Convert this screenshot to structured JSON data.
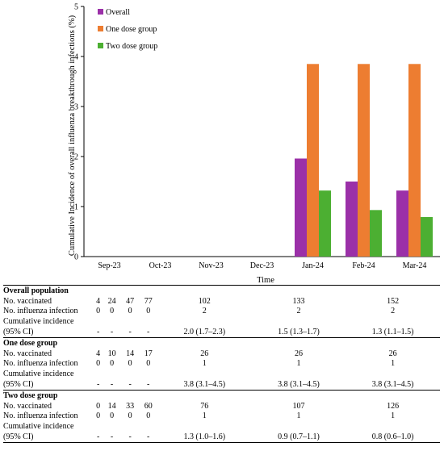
{
  "chart_data": {
    "type": "bar",
    "categories": [
      "Sep-23",
      "Oct-23",
      "Nov-23",
      "Dec-23",
      "Jan-24",
      "Feb-24",
      "Mar-24"
    ],
    "series": [
      {
        "name": "Overall",
        "color": "#9b30a8",
        "values": [
          0,
          0,
          0,
          0,
          1.96,
          1.5,
          1.32
        ]
      },
      {
        "name": "One dose group",
        "color": "#ed7d31",
        "values": [
          0,
          0,
          0,
          0,
          3.85,
          3.85,
          3.85
        ]
      },
      {
        "name": "Two dose group",
        "color": "#4caf32",
        "values": [
          0,
          0,
          0,
          0,
          1.32,
          0.93,
          0.79
        ]
      }
    ],
    "xlabel": "Time",
    "ylabel": "Cumulative Incidence of overall influenza breakthrough infections (%)",
    "ylim": [
      0,
      5
    ],
    "yticks": [
      "0",
      "1",
      "2",
      "3",
      "4",
      "5"
    ],
    "legend_position": "top-left",
    "grid": false
  },
  "table": {
    "sections": [
      {
        "title": "Overall population",
        "rows": [
          {
            "label": "No. vaccinated",
            "values": [
              "4",
              "24",
              "47",
              "77",
              "102",
              "133",
              "152"
            ]
          },
          {
            "label": "No. influenza infection",
            "values": [
              "0",
              "0",
              "0",
              "0",
              "2",
              "2",
              "2"
            ]
          }
        ],
        "ci_label_1": "Cumulative incidence",
        "ci_label_2": "(95% CI)",
        "ci_values": [
          "-",
          "-",
          "-",
          "-",
          "2.0 (1.7–2.3)",
          "1.5 (1.3–1.7)",
          "1.3 (1.1–1.5)"
        ]
      },
      {
        "title": "One dose group",
        "rows": [
          {
            "label": "No. vaccinated",
            "values": [
              "4",
              "10",
              "14",
              "17",
              "26",
              "26",
              "26"
            ]
          },
          {
            "label": "No. influenza infection",
            "values": [
              "0",
              "0",
              "0",
              "0",
              "1",
              "1",
              "1"
            ]
          }
        ],
        "ci_label_1": "Cumulative incidence",
        "ci_label_2": "(95% CI)",
        "ci_values": [
          "-",
          "-",
          "-",
          "-",
          "3.8 (3.1–4.5)",
          "3.8 (3.1–4.5)",
          "3.8 (3.1–4.5)"
        ]
      },
      {
        "title": "Two dose group",
        "rows": [
          {
            "label": "No. vaccinated",
            "values": [
              "0",
              "14",
              "33",
              "60",
              "76",
              "107",
              "126"
            ]
          },
          {
            "label": "No. influenza infection",
            "values": [
              "0",
              "0",
              "0",
              "0",
              "1",
              "1",
              "1"
            ]
          }
        ],
        "ci_label_1": "Cumulative incidence",
        "ci_label_2": "(95% CI)",
        "ci_values": [
          "-",
          "-",
          "-",
          "-",
          "1.3 (1.0–1.6)",
          "0.9 (0.7–1.1)",
          "0.8 (0.6–1.0)"
        ]
      }
    ]
  }
}
